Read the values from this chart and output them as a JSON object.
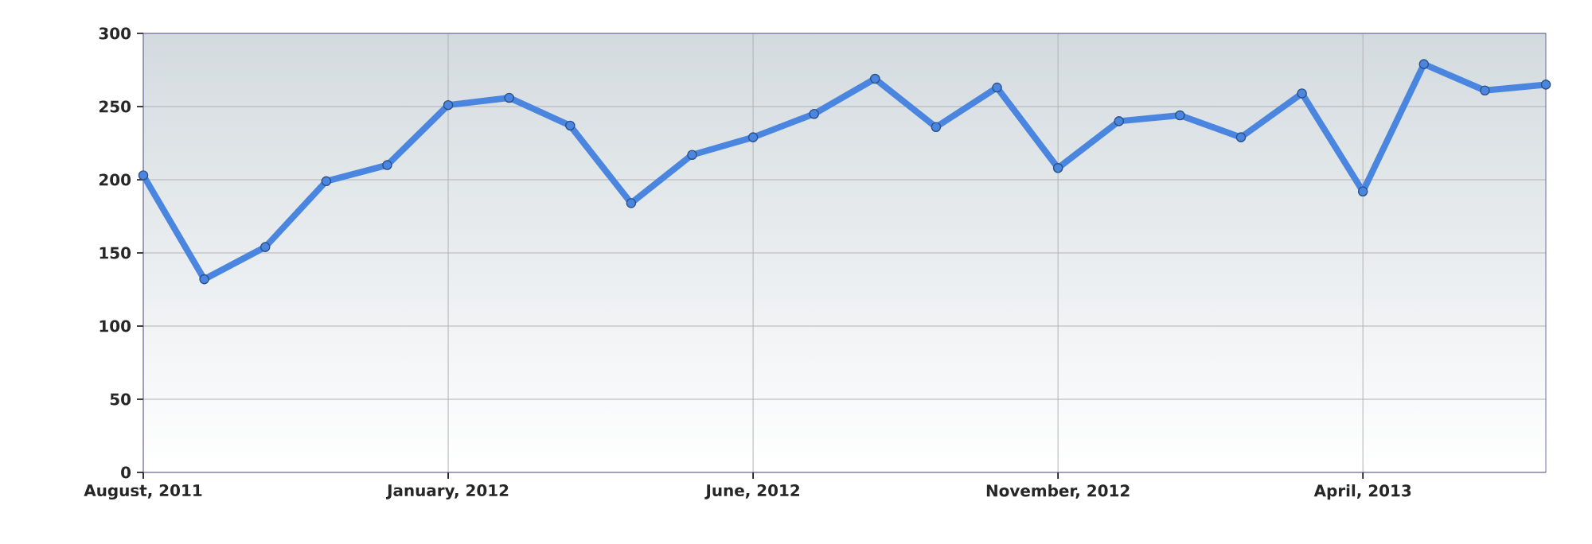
{
  "chart_data": {
    "type": "line",
    "x": [
      "2011-08",
      "2011-09",
      "2011-10",
      "2011-11",
      "2011-12",
      "2012-01",
      "2012-02",
      "2012-03",
      "2012-04",
      "2012-05",
      "2012-06",
      "2012-07",
      "2012-08",
      "2012-09",
      "2012-10",
      "2012-11",
      "2012-12",
      "2013-01",
      "2013-02",
      "2013-03",
      "2013-04",
      "2013-05",
      "2013-06",
      "2013-07"
    ],
    "series": [
      {
        "color": "#4a86e0",
        "values": [
          203,
          132,
          154,
          199,
          210,
          251,
          256,
          237,
          184,
          217,
          229,
          245,
          269,
          236,
          263,
          208,
          240,
          244,
          229,
          259,
          192,
          279,
          261,
          265
        ]
      }
    ],
    "xlim": [
      "2011-08",
      "2013-07"
    ],
    "xticks": [
      {
        "value": "2011-08",
        "label": "August, 2011"
      },
      {
        "value": "2012-01",
        "label": "January, 2012"
      },
      {
        "value": "2012-06",
        "label": "June, 2012"
      },
      {
        "value": "2012-11",
        "label": "November, 2012"
      },
      {
        "value": "2013-04",
        "label": "April, 2013"
      }
    ],
    "ylim": [
      0,
      300
    ],
    "yticks": [
      0,
      50,
      100,
      150,
      200,
      250,
      300
    ],
    "grid": true,
    "marker": "circle",
    "line_style": "solid"
  }
}
